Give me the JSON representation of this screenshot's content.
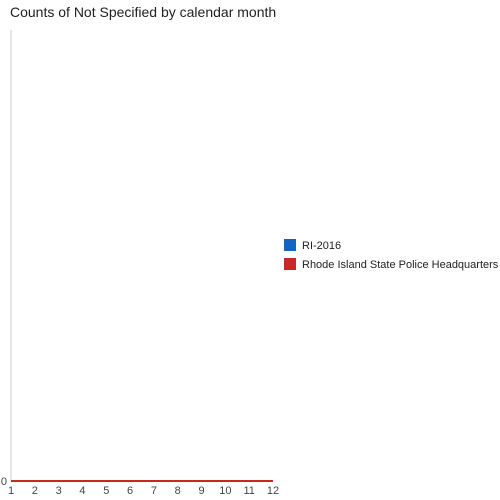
{
  "chart_data": {
    "type": "line",
    "title": "Counts of Not Specified by calendar month",
    "xlabel": "",
    "ylabel": "",
    "categories": [
      "1",
      "2",
      "3",
      "4",
      "5",
      "6",
      "7",
      "8",
      "9",
      "10",
      "11",
      "12"
    ],
    "y_ticks": [
      "0"
    ],
    "ylim": [
      0,
      1
    ],
    "series": [
      {
        "name": "RI-2016",
        "color": "#1565c0",
        "values": [
          0,
          0,
          0,
          0,
          0,
          0,
          0,
          0,
          0,
          0,
          0,
          0
        ]
      },
      {
        "name": "Rhode Island State Police Headquarters",
        "color": "#c62828",
        "values": [
          0,
          0,
          0,
          0,
          0,
          0,
          0,
          0,
          0,
          0,
          0,
          0
        ]
      }
    ],
    "legend_position": "right",
    "grid": false
  }
}
